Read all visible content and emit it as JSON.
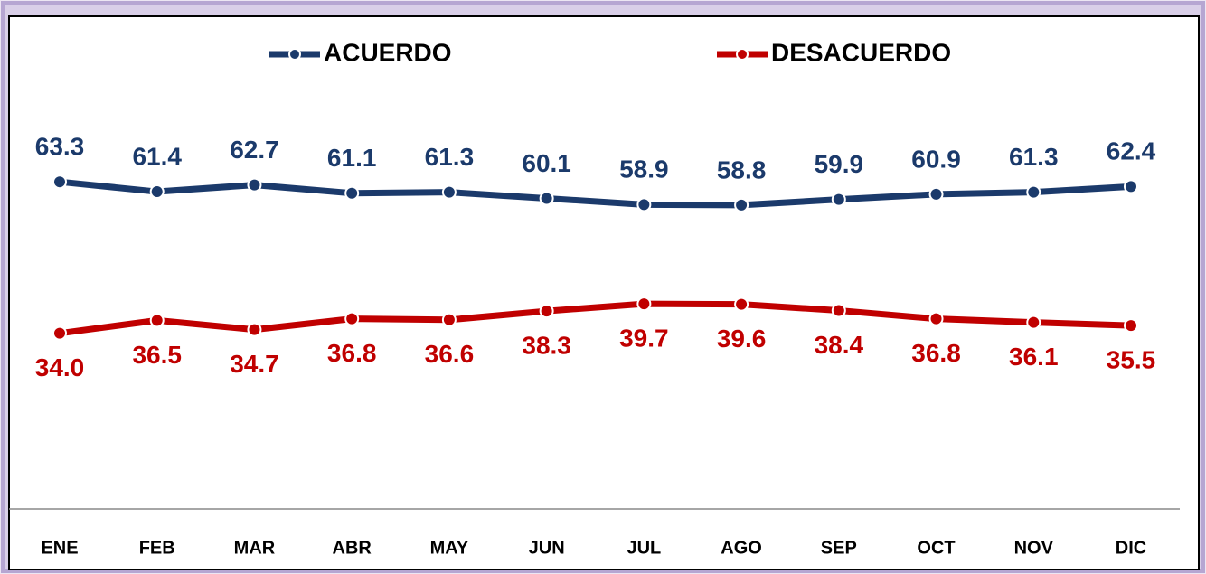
{
  "chart_data": {
    "type": "line",
    "categories": [
      "ENE",
      "FEB",
      "MAR",
      "ABR",
      "MAY",
      "JUN",
      "JUL",
      "AGO",
      "SEP",
      "OCT",
      "NOV",
      "DIC"
    ],
    "series": [
      {
        "name": "ACUERDO",
        "color": "#1b3a6b",
        "values": [
          63.3,
          61.4,
          62.7,
          61.1,
          61.3,
          60.1,
          58.9,
          58.8,
          59.9,
          60.9,
          61.3,
          62.4
        ]
      },
      {
        "name": "DESACUERDO",
        "color": "#c00000",
        "values": [
          34.0,
          36.5,
          34.7,
          36.8,
          36.6,
          38.3,
          39.7,
          39.6,
          38.4,
          36.8,
          36.1,
          35.5
        ]
      }
    ],
    "value_labels": [
      [
        "63.3",
        "61.4",
        "62.7",
        "61.1",
        "61.3",
        "60.1",
        "58.9",
        "58.8",
        "59.9",
        "60.9",
        "61.3",
        "62.4"
      ],
      [
        "34.0",
        "36.5",
        "34.7",
        "36.8",
        "36.6",
        "38.3",
        "39.7",
        "39.6",
        "38.4",
        "36.8",
        "36.1",
        "35.5"
      ]
    ],
    "ylim": [
      0,
      95
    ],
    "legend": "top"
  }
}
